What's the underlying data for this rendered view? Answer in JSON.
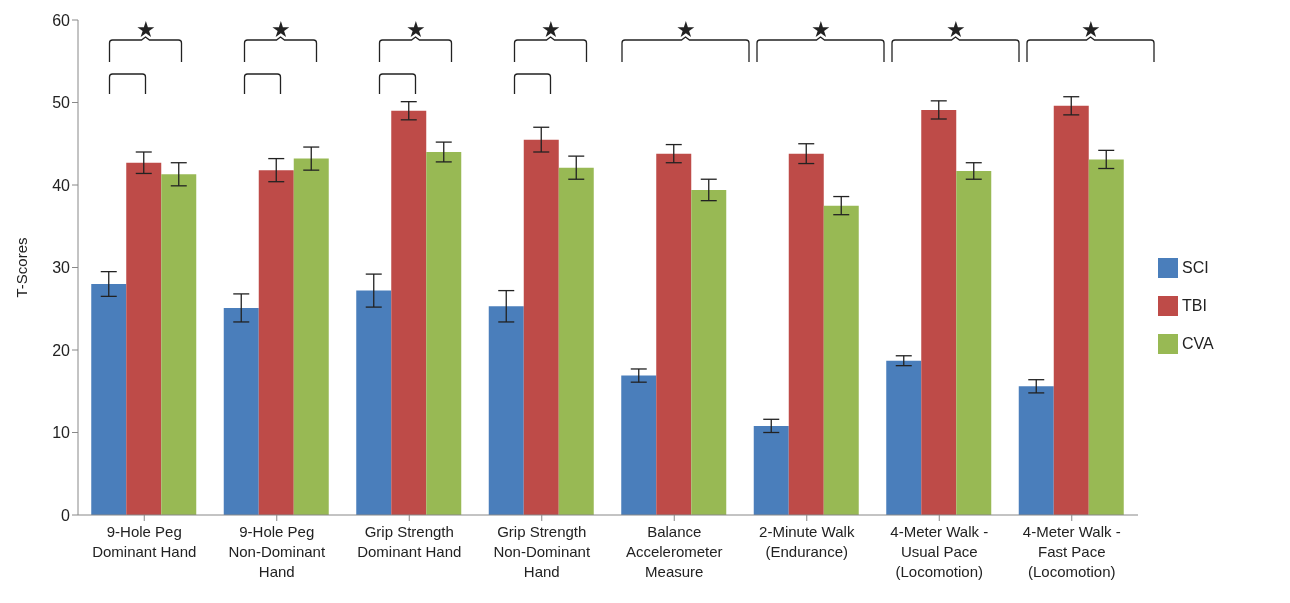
{
  "chart_data": {
    "type": "bar",
    "ylabel": "T-Scores",
    "categories": [
      "9-Hole Peg\nDominant Hand",
      "9-Hole Peg\nNon-Dominant\nHand",
      "Grip Strength\nDominant Hand",
      "Grip Strength\nNon-Dominant\nHand",
      "Balance\nAccelerometer\nMeasure",
      "2-Minute Walk\n(Endurance)",
      "4-Meter Walk -\nUsual Pace\n(Locomotion)",
      "4-Meter Walk -\nFast Pace\n(Locomotion)"
    ],
    "series": [
      {
        "name": "SCI",
        "color": "#4a7ebb",
        "values": [
          28,
          25.1,
          27.2,
          25.3,
          16.9,
          10.8,
          18.7,
          15.6
        ],
        "errors": [
          1.5,
          1.7,
          2,
          1.9,
          0.8,
          0.8,
          0.6,
          0.8
        ]
      },
      {
        "name": "TBI",
        "color": "#be4b48",
        "values": [
          42.7,
          41.8,
          49,
          45.5,
          43.8,
          43.8,
          49.1,
          49.6
        ],
        "errors": [
          1.3,
          1.4,
          1.1,
          1.5,
          1.1,
          1.2,
          1.1,
          1.1
        ]
      },
      {
        "name": "CVA",
        "color": "#98b954",
        "values": [
          41.3,
          43.2,
          44,
          42.1,
          39.4,
          37.5,
          41.7,
          43.1
        ],
        "errors": [
          1.4,
          1.4,
          1.2,
          1.4,
          1.3,
          1.1,
          1,
          1.1
        ]
      }
    ],
    "ylim": [
      0,
      60
    ],
    "yticks": [
      0,
      10,
      20,
      30,
      40,
      50,
      60
    ],
    "legend": "right",
    "annotations": [
      "★",
      "★",
      "★",
      "★",
      "★",
      "★",
      "★",
      "★"
    ]
  }
}
